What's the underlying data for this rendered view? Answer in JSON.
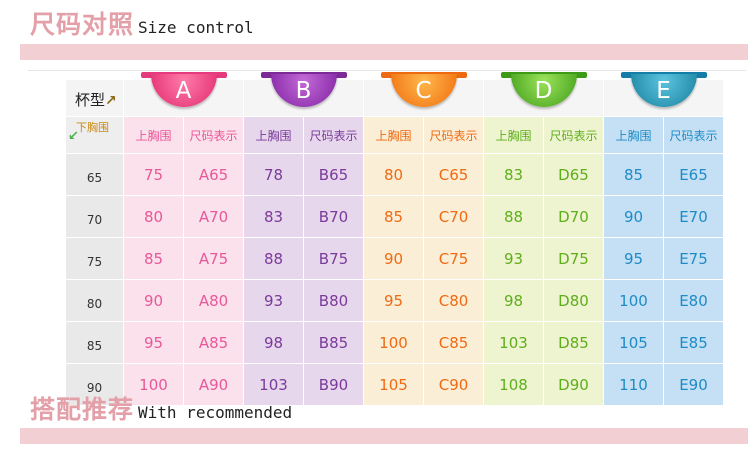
{
  "section1": {
    "title_cn": "尺码对照",
    "title_en": "Size control"
  },
  "section2": {
    "title_cn": "搭配推荐",
    "title_en": "With recommended"
  },
  "table": {
    "cup_label": "杯型",
    "under_label": "下胸围",
    "cups": [
      {
        "letter": "A",
        "bust_label": "上胸围",
        "size_label": "尺码表示",
        "color": "#e8579a",
        "bg": "#fbe1eb"
      },
      {
        "letter": "B",
        "bust_label": "上胸围",
        "size_label": "尺码表示",
        "color": "#7a3a9a",
        "bg": "#e7d7ec"
      },
      {
        "letter": "C",
        "bust_label": "上胸围",
        "size_label": "尺码表示",
        "color": "#ef6a12",
        "bg": "#fbeed6"
      },
      {
        "letter": "D",
        "bust_label": "上胸围",
        "size_label": "尺码表示",
        "color": "#5fae1c",
        "bg": "#eef4cf"
      },
      {
        "letter": "E",
        "bust_label": "上胸围",
        "size_label": "尺码表示",
        "color": "#1e8bc6",
        "bg": "#c5e0f4"
      }
    ],
    "rows": [
      {
        "under": "65",
        "cells": [
          [
            "75",
            "A65"
          ],
          [
            "78",
            "B65"
          ],
          [
            "80",
            "C65"
          ],
          [
            "83",
            "D65"
          ],
          [
            "85",
            "E65"
          ]
        ]
      },
      {
        "under": "70",
        "cells": [
          [
            "80",
            "A70"
          ],
          [
            "83",
            "B70"
          ],
          [
            "85",
            "C70"
          ],
          [
            "88",
            "D70"
          ],
          [
            "90",
            "E70"
          ]
        ]
      },
      {
        "under": "75",
        "cells": [
          [
            "85",
            "A75"
          ],
          [
            "88",
            "B75"
          ],
          [
            "90",
            "C75"
          ],
          [
            "93",
            "D75"
          ],
          [
            "95",
            "E75"
          ]
        ]
      },
      {
        "under": "80",
        "cells": [
          [
            "90",
            "A80"
          ],
          [
            "93",
            "B80"
          ],
          [
            "95",
            "C80"
          ],
          [
            "98",
            "D80"
          ],
          [
            "100",
            "E80"
          ]
        ]
      },
      {
        "under": "85",
        "cells": [
          [
            "95",
            "A85"
          ],
          [
            "98",
            "B85"
          ],
          [
            "100",
            "C85"
          ],
          [
            "103",
            "D85"
          ],
          [
            "105",
            "E85"
          ]
        ]
      },
      {
        "under": "90",
        "cells": [
          [
            "100",
            "A90"
          ],
          [
            "103",
            "B90"
          ],
          [
            "105",
            "C90"
          ],
          [
            "108",
            "D90"
          ],
          [
            "110",
            "E90"
          ]
        ]
      }
    ]
  }
}
